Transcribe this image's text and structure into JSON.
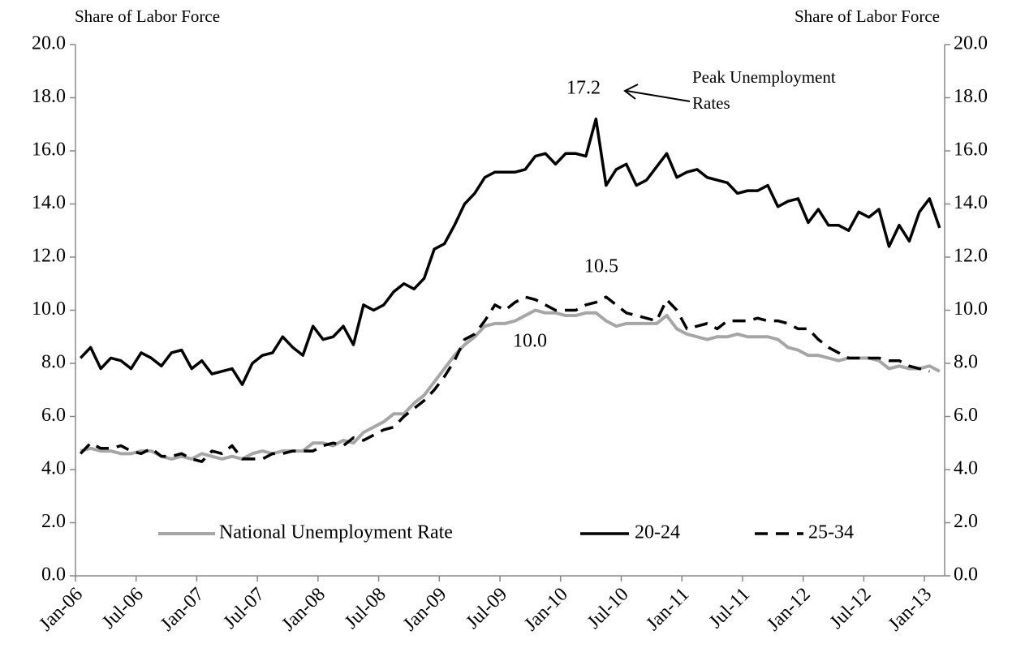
{
  "chart_data": {
    "type": "line",
    "y_axis_label": "Share of Labor Force",
    "y2_axis_label": "Share of Labor Force",
    "categories": [
      "Jan-06",
      null,
      null,
      null,
      null,
      null,
      "Jul-06",
      null,
      null,
      null,
      null,
      null,
      "Jan-07",
      null,
      null,
      null,
      null,
      null,
      "Jul-07",
      null,
      null,
      null,
      null,
      null,
      "Jan-08",
      null,
      null,
      null,
      null,
      null,
      "Jul-08",
      null,
      null,
      null,
      null,
      null,
      "Jan-09",
      null,
      null,
      null,
      null,
      null,
      "Jul-09",
      null,
      null,
      null,
      null,
      null,
      "Jan-10",
      null,
      null,
      null,
      null,
      null,
      "Jul-10",
      null,
      null,
      null,
      null,
      null,
      "Jan-11",
      null,
      null,
      null,
      null,
      null,
      "Jul-11",
      null,
      null,
      null,
      null,
      null,
      "Jan-12",
      null,
      null,
      null,
      null,
      null,
      "Jul-12",
      null,
      null,
      null,
      null,
      null,
      "Jan-13",
      null
    ],
    "series": [
      {
        "name": "National Unemployment Rate",
        "color": "#a6a6a6",
        "dash": "solid",
        "values": [
          4.7,
          4.8,
          4.7,
          4.7,
          4.6,
          4.6,
          4.7,
          4.7,
          4.5,
          4.4,
          4.5,
          4.4,
          4.6,
          4.5,
          4.4,
          4.5,
          4.4,
          4.6,
          4.7,
          4.6,
          4.7,
          4.7,
          4.7,
          5.0,
          5.0,
          4.9,
          5.1,
          5.0,
          5.4,
          5.6,
          5.8,
          6.1,
          6.1,
          6.5,
          6.8,
          7.3,
          7.8,
          8.3,
          8.7,
          9.0,
          9.4,
          9.5,
          9.5,
          9.6,
          9.8,
          10.0,
          9.9,
          9.9,
          9.8,
          9.8,
          9.9,
          9.9,
          9.6,
          9.4,
          9.5,
          9.5,
          9.5,
          9.5,
          9.8,
          9.3,
          9.1,
          9.0,
          8.9,
          9.0,
          9.0,
          9.1,
          9.0,
          9.0,
          9.0,
          8.9,
          8.6,
          8.5,
          8.3,
          8.3,
          8.2,
          8.1,
          8.2,
          8.2,
          8.2,
          8.1,
          7.8,
          7.9,
          7.8,
          7.8,
          7.9,
          7.7
        ]
      },
      {
        "name": "20-24",
        "color": "#000000",
        "dash": "solid",
        "values": [
          8.2,
          8.6,
          7.8,
          8.2,
          8.1,
          7.8,
          8.4,
          8.2,
          7.9,
          8.4,
          8.5,
          7.8,
          8.1,
          7.6,
          7.7,
          7.8,
          7.2,
          8.0,
          8.3,
          8.4,
          9.0,
          8.6,
          8.3,
          9.4,
          8.9,
          9.0,
          9.4,
          8.7,
          10.2,
          10.0,
          10.2,
          10.7,
          11.0,
          10.8,
          11.2,
          12.3,
          12.5,
          13.2,
          14.0,
          14.4,
          15.0,
          15.2,
          15.2,
          15.2,
          15.3,
          15.8,
          15.9,
          15.5,
          15.9,
          15.9,
          15.8,
          17.2,
          14.7,
          15.3,
          15.5,
          14.7,
          14.9,
          15.4,
          15.9,
          15.0,
          15.2,
          15.3,
          15.0,
          14.9,
          14.8,
          14.4,
          14.5,
          14.5,
          14.7,
          13.9,
          14.1,
          14.2,
          13.3,
          13.8,
          13.2,
          13.2,
          13.0,
          13.7,
          13.5,
          13.8,
          12.4,
          13.2,
          12.6,
          13.7,
          14.2,
          13.1
        ]
      },
      {
        "name": "25-34",
        "color": "#000000",
        "dash": "dashed",
        "values": [
          4.6,
          5.0,
          4.8,
          4.8,
          4.9,
          4.7,
          4.6,
          4.8,
          4.5,
          4.5,
          4.6,
          4.4,
          4.3,
          4.7,
          4.6,
          4.9,
          4.4,
          4.4,
          4.4,
          4.6,
          4.6,
          4.7,
          4.7,
          4.7,
          4.9,
          5.0,
          4.9,
          5.2,
          5.1,
          5.3,
          5.5,
          5.6,
          6.0,
          6.3,
          6.6,
          7.0,
          7.5,
          8.1,
          8.9,
          9.1,
          9.6,
          10.2,
          10.0,
          10.3,
          10.5,
          10.4,
          10.2,
          10.0,
          10.0,
          10.0,
          10.2,
          10.3,
          10.5,
          10.2,
          9.9,
          9.8,
          9.7,
          9.6,
          10.4,
          10.0,
          9.3,
          9.4,
          9.5,
          9.3,
          9.6,
          9.6,
          9.6,
          9.7,
          9.6,
          9.6,
          9.5,
          9.3,
          9.3,
          8.9,
          8.6,
          8.4,
          8.2,
          8.2,
          8.2,
          8.2,
          8.1,
          8.1,
          7.9,
          7.8,
          7.7,
          null
        ]
      }
    ],
    "ylim": [
      0,
      20
    ],
    "yticks": [
      {
        "value": 0,
        "label": "0.0"
      },
      {
        "value": 2,
        "label": "2.0"
      },
      {
        "value": 4,
        "label": "4.0"
      },
      {
        "value": 6,
        "label": "6.0"
      },
      {
        "value": 8,
        "label": "8.0"
      },
      {
        "value": 10,
        "label": "10.0"
      },
      {
        "value": 12,
        "label": "12.0"
      },
      {
        "value": 14,
        "label": "14.0"
      },
      {
        "value": 16,
        "label": "16.0"
      },
      {
        "value": 18,
        "label": "18.0"
      },
      {
        "value": 20,
        "label": "20.0"
      }
    ],
    "y2lim": [
      0,
      20
    ],
    "y2ticks": [
      {
        "value": 0,
        "label": "0.0"
      },
      {
        "value": 2,
        "label": "2.0"
      },
      {
        "value": 4,
        "label": "4.0"
      },
      {
        "value": 6,
        "label": "6.0"
      },
      {
        "value": 8,
        "label": "8.0"
      },
      {
        "value": 10,
        "label": "10.0"
      },
      {
        "value": 12,
        "label": "12.0"
      },
      {
        "value": 14,
        "label": "14.0"
      },
      {
        "value": 16,
        "label": "16.0"
      },
      {
        "value": 18,
        "label": "18.0"
      },
      {
        "value": 20,
        "label": "20.0"
      }
    ],
    "grid": false,
    "legend": "bottom",
    "annotations": [
      {
        "text": "17.2"
      },
      {
        "text": [
          "Peak Unemployment",
          "Rates"
        ]
      },
      {
        "text": "10.5"
      },
      {
        "text": "10.0"
      }
    ]
  }
}
